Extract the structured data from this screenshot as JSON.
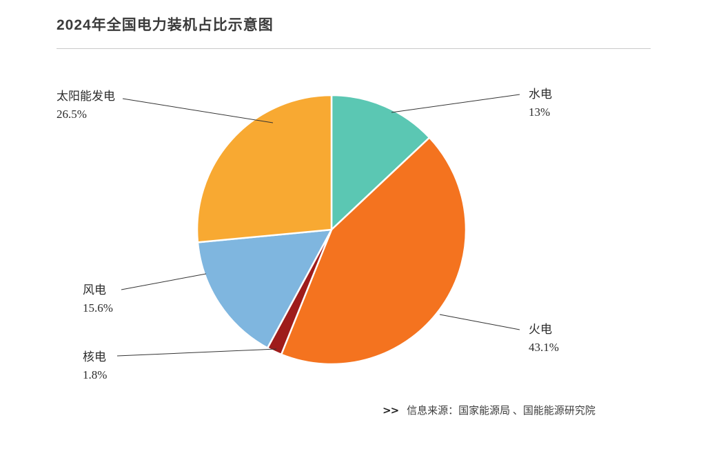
{
  "chart_data": {
    "type": "pie",
    "title": "2024年全国电力装机占比示意图",
    "unit": "%",
    "start_angle": "12-o'clock, clockwise",
    "legend_position": "outside-labels-with-leader-lines",
    "slices": [
      {
        "name": "hydro",
        "label": "水电",
        "value": 13,
        "display": "13%",
        "color": "#5BC7B3"
      },
      {
        "name": "thermal",
        "label": "火电",
        "value": 43.1,
        "display": "43.1%",
        "color": "#F4731F"
      },
      {
        "name": "nuclear",
        "label": "核电",
        "value": 1.8,
        "display": "1.8%",
        "color": "#9E1C1B"
      },
      {
        "name": "wind",
        "label": "风电",
        "value": 15.6,
        "display": "15.6%",
        "color": "#7FB6DF"
      },
      {
        "name": "solar",
        "label": "太阳能发电",
        "value": 26.5,
        "display": "26.5%",
        "color": "#F8A932"
      }
    ]
  },
  "source": {
    "marker": ">>",
    "text": "信息来源：国家能源局 、国能能源研究院"
  }
}
